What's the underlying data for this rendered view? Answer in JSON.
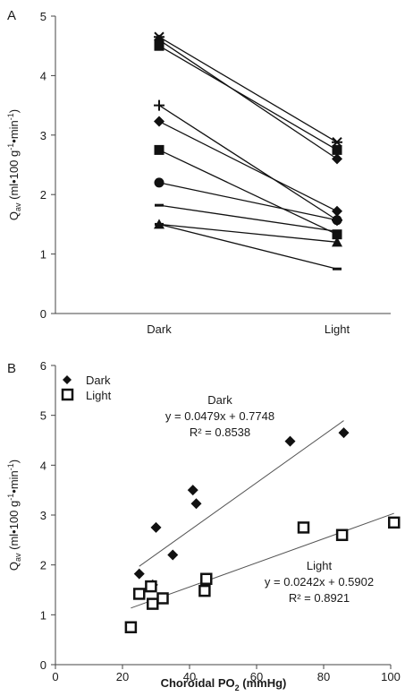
{
  "chart_data": [
    {
      "panel": "A",
      "type": "line",
      "categories": [
        "Dark",
        "Light"
      ],
      "ylim": [
        0,
        5
      ],
      "yticks": [
        "0",
        "1",
        "2",
        "3",
        "4",
        "5"
      ],
      "ylabel": "Qav (ml•100 g-1•min-1)",
      "ylabel_parts": {
        "q": "Q",
        "sub": "av",
        "a": " (ml•100 g",
        "sup1": "-1",
        "b": "•min",
        "sup2": "-1",
        "c": ")"
      },
      "grid": false,
      "series": [
        {
          "marker": "asterisk",
          "values": [
            4.65,
            2.88
          ]
        },
        {
          "marker": "diamond",
          "values": [
            4.6,
            2.6
          ]
        },
        {
          "marker": "square",
          "values": [
            4.5,
            2.75
          ]
        },
        {
          "marker": "plus",
          "values": [
            3.5,
            1.57
          ]
        },
        {
          "marker": "diamond",
          "values": [
            3.23,
            1.72
          ]
        },
        {
          "marker": "square",
          "values": [
            2.75,
            1.33
          ]
        },
        {
          "marker": "circle",
          "values": [
            2.2,
            1.57
          ]
        },
        {
          "marker": "dash",
          "values": [
            1.82,
            1.38
          ]
        },
        {
          "marker": "triangle",
          "values": [
            1.5,
            1.2
          ]
        },
        {
          "marker": "dash",
          "values": [
            1.5,
            0.75
          ]
        }
      ]
    },
    {
      "panel": "B",
      "type": "scatter",
      "xlim": [
        0,
        100
      ],
      "ylim": [
        0,
        6
      ],
      "xticks": [
        "0",
        "20",
        "40",
        "60",
        "80",
        "100"
      ],
      "yticks": [
        "0",
        "1",
        "2",
        "3",
        "4",
        "5",
        "6"
      ],
      "xlabel_parts": {
        "a": "Choroidal PO",
        "sub": "2",
        "b": " (mmHg)"
      },
      "ylabel_parts": {
        "q": "Q",
        "sub": "av",
        "a": " (ml•100 g",
        "sup1": "-1",
        "b": "•min",
        "sup2": "-1",
        "c": ")"
      },
      "grid": false,
      "legend": {
        "position": "top-left",
        "entries": [
          "Dark",
          "Light"
        ]
      },
      "series": [
        {
          "name": "Dark",
          "marker": "diamond",
          "points": [
            [
              25,
              1.82
            ],
            [
              29,
              1.6
            ],
            [
              30,
              2.75
            ],
            [
              35,
              2.2
            ],
            [
              41,
              3.5
            ],
            [
              42,
              3.23
            ],
            [
              70,
              4.48
            ],
            [
              86,
              4.65
            ]
          ],
          "fit": {
            "slope": 0.0479,
            "intercept": 0.7748,
            "x_range": [
              25,
              86
            ]
          },
          "equation": "y = 0.0479x + 0.7748",
          "r2": "R² = 0.8538",
          "annotation_label": "Dark"
        },
        {
          "name": "Light",
          "marker": "square-open",
          "points": [
            [
              22.5,
              0.75
            ],
            [
              25,
              1.42
            ],
            [
              28.5,
              1.57
            ],
            [
              29,
              1.22
            ],
            [
              32,
              1.33
            ],
            [
              44.5,
              1.48
            ],
            [
              45,
              1.72
            ],
            [
              74,
              2.75
            ],
            [
              85.5,
              2.6
            ],
            [
              101,
              2.85
            ]
          ],
          "fit": {
            "slope": 0.0242,
            "intercept": 0.5902,
            "x_range": [
              22.5,
              101
            ]
          },
          "equation": "y = 0.0242x + 0.5902",
          "r2": "R² = 0.8921",
          "annotation_label": "Light"
        }
      ]
    }
  ]
}
